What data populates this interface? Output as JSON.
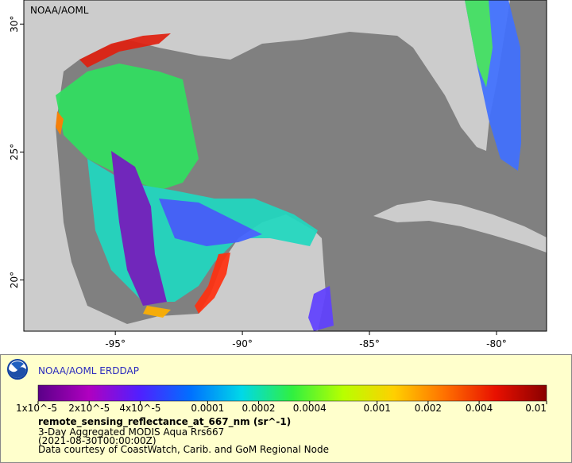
{
  "map": {
    "corner_label": "NOAA/AOML",
    "xlim": [
      -98.6,
      -78.03
    ],
    "ylim": [
      18,
      30.94
    ],
    "xticks": [
      {
        "value": -95,
        "label": "-95°"
      },
      {
        "value": -90,
        "label": "-90°"
      },
      {
        "value": -85,
        "label": "-85°"
      },
      {
        "value": -80,
        "label": "-80°"
      }
    ],
    "yticks": [
      {
        "value": 20,
        "label": "20°"
      },
      {
        "value": 25,
        "label": "25°"
      },
      {
        "value": 30,
        "label": "30°"
      }
    ]
  },
  "legend": {
    "title": "NOAA/AOML ERDDAP",
    "colorbar": {
      "scale": "log",
      "lim": [
        1e-05,
        0.01
      ],
      "colors": [
        "#5a0088",
        "#b000c0",
        "#5020ff",
        "#0070ff",
        "#00d8e8",
        "#30f040",
        "#b8ff00",
        "#ffd000",
        "#ff7000",
        "#e81000",
        "#8a0000"
      ],
      "ticks": [
        {
          "value": 1e-05,
          "label": "1x10^-5"
        },
        {
          "value": 2e-05,
          "label": "2x10^-5"
        },
        {
          "value": 4e-05,
          "label": "4x10^-5"
        },
        0.0001,
        0.0002,
        0.0004,
        0.001,
        0.002,
        0.004,
        0.01
      ]
    },
    "variable": "remote_sensing_reflectance_at_667_nm (sr^-1)",
    "lines": [
      "3-Day Aggregated MODIS Aqua Rrs667",
      "(2021-08-30T00:00:00Z)",
      "Data courtesy of CoastWatch, Carib. and GoM Regional Node"
    ]
  }
}
